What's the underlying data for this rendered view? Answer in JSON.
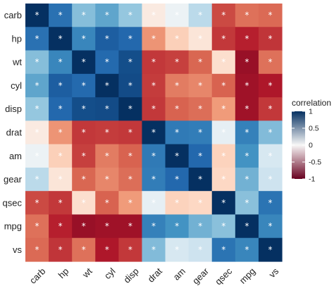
{
  "chart_data": {
    "type": "heatmap",
    "rows": [
      "carb",
      "hp",
      "wt",
      "cyl",
      "disp",
      "drat",
      "am",
      "gear",
      "qsec",
      "mpg",
      "vs"
    ],
    "columns": [
      "carb",
      "hp",
      "wt",
      "cyl",
      "disp",
      "drat",
      "am",
      "gear",
      "qsec",
      "mpg",
      "vs"
    ],
    "values": [
      [
        1.0,
        0.75,
        0.43,
        0.53,
        0.39,
        -0.09,
        0.06,
        0.27,
        -0.66,
        -0.55,
        -0.57
      ],
      [
        0.75,
        1.0,
        0.66,
        0.83,
        0.79,
        -0.45,
        -0.24,
        -0.13,
        -0.71,
        -0.78,
        -0.72
      ],
      [
        0.43,
        0.66,
        1.0,
        0.78,
        0.89,
        -0.71,
        -0.69,
        -0.58,
        -0.17,
        -0.87,
        -0.55
      ],
      [
        0.53,
        0.83,
        0.78,
        1.0,
        0.9,
        -0.7,
        -0.52,
        -0.49,
        -0.59,
        -0.85,
        -0.81
      ],
      [
        0.39,
        0.79,
        0.89,
        0.9,
        1.0,
        -0.71,
        -0.59,
        -0.56,
        -0.43,
        -0.85,
        -0.71
      ],
      [
        -0.09,
        -0.45,
        -0.71,
        -0.7,
        -0.71,
        1.0,
        0.71,
        0.7,
        0.09,
        0.68,
        0.44
      ],
      [
        0.06,
        -0.24,
        -0.69,
        -0.52,
        -0.59,
        0.71,
        1.0,
        0.79,
        -0.23,
        0.6,
        0.17
      ],
      [
        0.27,
        -0.13,
        -0.58,
        -0.49,
        -0.56,
        0.7,
        0.79,
        1.0,
        -0.21,
        0.48,
        0.21
      ],
      [
        -0.66,
        -0.71,
        -0.17,
        -0.59,
        -0.43,
        0.09,
        -0.23,
        -0.21,
        1.0,
        0.42,
        0.74
      ],
      [
        -0.55,
        -0.78,
        -0.87,
        -0.85,
        -0.85,
        0.68,
        0.6,
        0.48,
        0.42,
        1.0,
        0.66
      ],
      [
        -0.57,
        -0.72,
        -0.55,
        -0.81,
        -0.71,
        0.44,
        0.17,
        0.21,
        0.74,
        0.66,
        1.0
      ]
    ],
    "marker": "*",
    "value_range": [
      -1,
      1
    ],
    "legend": {
      "title": "correlation",
      "placement": "right",
      "ticks": [
        1,
        0.5,
        0,
        -0.5,
        -1
      ],
      "tick_labels": [
        "1",
        "0.5",
        "0",
        "-0.5",
        "-1"
      ]
    },
    "colors": {
      "low": "#67001f",
      "mid": "#f7f7f7",
      "high": "#053061"
    },
    "xlabel": "",
    "ylabel": "",
    "grid": false
  }
}
